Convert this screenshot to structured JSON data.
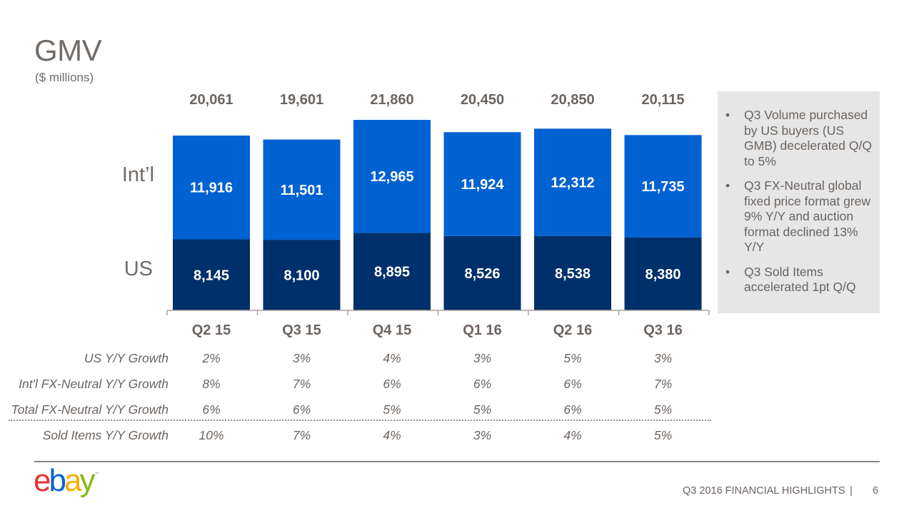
{
  "header": {
    "title": "GMV",
    "subtitle": "($ millions)"
  },
  "chart_data": {
    "type": "bar",
    "stacked": true,
    "title": "GMV",
    "subtitle": "($ millions)",
    "xlabel": "",
    "ylabel": "",
    "categories": [
      "Q2 15",
      "Q3 15",
      "Q4 15",
      "Q1 16",
      "Q2 16",
      "Q3 16"
    ],
    "series": [
      {
        "name": "US",
        "color": "#00306b",
        "values": [
          8145,
          8100,
          8895,
          8526,
          8538,
          8380
        ],
        "labels": [
          "8,145",
          "8,100",
          "8,895",
          "8,526",
          "8,538",
          "8,380"
        ]
      },
      {
        "name": "Int’l",
        "color": "#0061d1",
        "values": [
          11916,
          11501,
          12965,
          11924,
          12312,
          11735
        ],
        "labels": [
          "11,916",
          "11,501",
          "12,965",
          "11,924",
          "12,312",
          "11,735"
        ]
      }
    ],
    "totals": [
      20061,
      19601,
      21860,
      20450,
      20850,
      20115
    ],
    "total_labels": [
      "20,061",
      "19,601",
      "21,860",
      "20,450",
      "20,850",
      "20,115"
    ],
    "legend": [
      "Int’l",
      "US"
    ],
    "legend_placement": "left",
    "grid": false
  },
  "growth_table": {
    "rows": [
      {
        "label": "US Y/Y Growth",
        "values": [
          "2%",
          "3%",
          "4%",
          "3%",
          "5%",
          "3%"
        ]
      },
      {
        "label": "Int'l FX-Neutral Y/Y Growth",
        "values": [
          "8%",
          "7%",
          "6%",
          "6%",
          "6%",
          "7%"
        ]
      },
      {
        "label": "Total FX-Neutral Y/Y Growth",
        "values": [
          "6%",
          "6%",
          "5%",
          "5%",
          "6%",
          "5%"
        ]
      },
      {
        "label": "Sold Items Y/Y Growth",
        "values": [
          "10%",
          "7%",
          "4%",
          "3%",
          "4%",
          "5%"
        ]
      }
    ]
  },
  "sidebar": {
    "bullets": [
      "Q3 Volume purchased by US buyers (US GMB) decelerated Q/Q to 5%",
      "Q3 FX-Neutral global fixed price format grew 9% Y/Y and auction format declined 13% Y/Y",
      "Q3 Sold Items accelerated 1pt Q/Q"
    ],
    "bullet_glyph": "•"
  },
  "footer": {
    "logo": {
      "e": "e",
      "b": "b",
      "a": "a",
      "y": "y",
      "tm": "™"
    },
    "text": "Q3 2016 FINANCIAL HIGHLIGHTS",
    "separator": "|",
    "page": "6"
  }
}
